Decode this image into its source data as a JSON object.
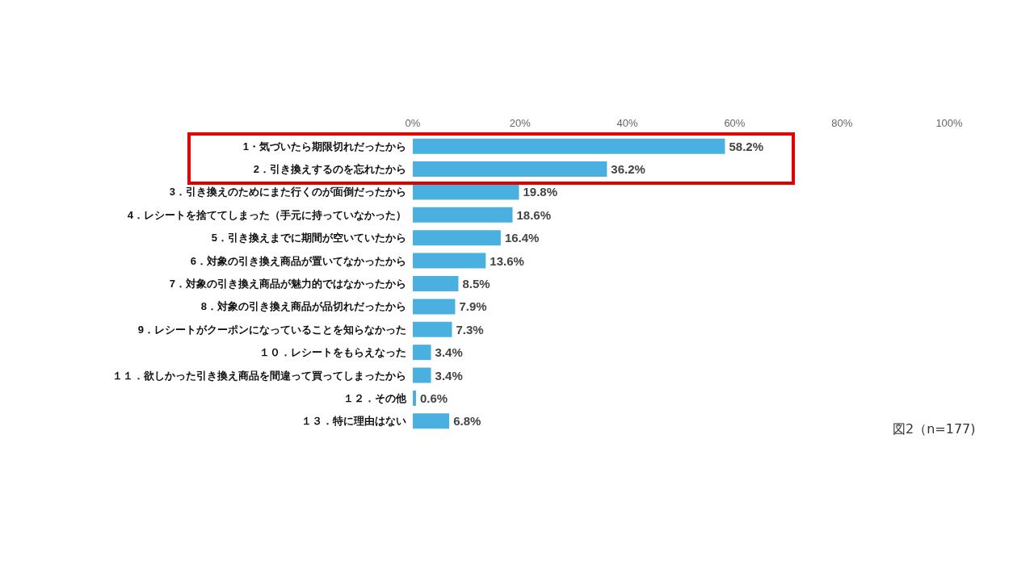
{
  "chart_data": {
    "type": "bar",
    "orientation": "horizontal",
    "categories": [
      "1・気づいたら期限切れだったから",
      "2．引き換えするのを忘れたから",
      "3．引き換えのためにまた行くのが面倒だったから",
      "4．レシートを捨ててしまった（手元に持っていなかった）",
      "5．引き換えまでに期間が空いていたから",
      "6．対象の引き換え商品が置いてなかったから",
      "7．対象の引き換え商品が魅力的ではなかったから",
      "8．対象の引き換え商品が品切れだったから",
      "9．レシートがクーポンになっていることを知らなかった",
      "１０．レシートをもらえなった",
      "１１．欲しかった引き換え商品を間違って買ってしまったから",
      "１２．その他",
      "１３．特に理由はない"
    ],
    "values": [
      58.2,
      36.2,
      19.8,
      18.6,
      16.4,
      13.6,
      8.5,
      7.9,
      7.3,
      3.4,
      3.4,
      0.6,
      6.8
    ],
    "value_labels": [
      "58.2%",
      "36.2%",
      "19.8%",
      "18.6%",
      "16.4%",
      "13.6%",
      "8.5%",
      "7.9%",
      "7.3%",
      "3.4%",
      "3.4%",
      "0.6%",
      "6.8%"
    ],
    "color": "#4ab0e0",
    "xlim": [
      0,
      100
    ],
    "xticks": [
      {
        "value": 0,
        "label": "0%"
      },
      {
        "value": 20,
        "label": "20%"
      },
      {
        "value": 40,
        "label": "40%"
      },
      {
        "value": 60,
        "label": "60%"
      },
      {
        "value": 80,
        "label": "80%"
      },
      {
        "value": 100,
        "label": "100%"
      }
    ],
    "grid": false,
    "annotations": [
      "図2（n=177)"
    ]
  }
}
